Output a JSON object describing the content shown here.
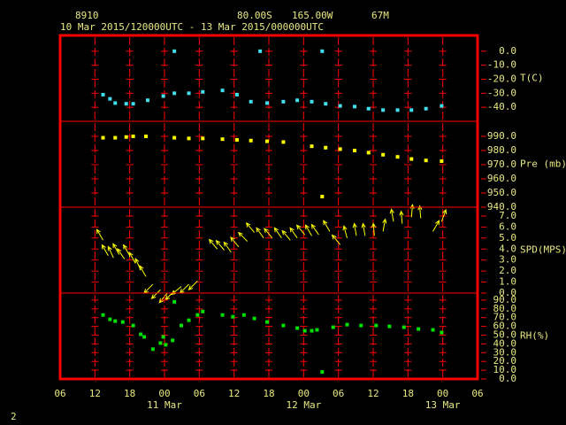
{
  "header": {
    "station": "8910",
    "lat": "80.00S",
    "lon": "165.00W",
    "elev": "67M",
    "period": "10 Mar 2015/120000UTC - 13 Mar 2015/000000UTC",
    "page": "2"
  },
  "x_axis": {
    "xlim": [
      6,
      78
    ],
    "xticks": [
      {
        "value": 6,
        "label": "06"
      },
      {
        "value": 12,
        "label": "12"
      },
      {
        "value": 18,
        "label": "18"
      },
      {
        "value": 24,
        "label": "00"
      },
      {
        "value": 30,
        "label": "06"
      },
      {
        "value": 36,
        "label": "12"
      },
      {
        "value": 42,
        "label": "18"
      },
      {
        "value": 48,
        "label": "00"
      },
      {
        "value": 54,
        "label": "06"
      },
      {
        "value": 60,
        "label": "12"
      },
      {
        "value": 66,
        "label": "18"
      },
      {
        "value": 72,
        "label": "00"
      },
      {
        "value": 78,
        "label": "06"
      }
    ],
    "date_labels": [
      {
        "value": 24,
        "label": "11 Mar"
      },
      {
        "value": 48,
        "label": "12 Mar"
      },
      {
        "value": 72,
        "label": "13 Mar"
      }
    ]
  },
  "chart_data": [
    {
      "type": "scatter",
      "label": "T(C)",
      "color": "#40e0f0",
      "ylim": [
        -50,
        11.25
      ],
      "yticks": [
        {
          "value": 0,
          "label": "0.0"
        },
        {
          "value": -10,
          "label": "-10.0"
        },
        {
          "value": -20,
          "label": "-20.0"
        },
        {
          "value": -30,
          "label": "-30.0"
        },
        {
          "value": -40,
          "label": "-40.0"
        }
      ],
      "x": [
        13.4,
        14.6,
        15.5,
        17.4,
        18.6,
        21.1,
        23.8,
        25.7,
        25.7,
        28.2,
        30.6,
        34,
        36.5,
        38.9,
        40.5,
        41.7,
        44.5,
        46.9,
        49.4,
        51.2,
        51.8,
        54.3,
        56.8,
        59.2,
        61.7,
        64.2,
        66.6,
        69.1,
        71.8
      ],
      "values": [
        -31,
        -34,
        -37,
        -37.5,
        -37.5,
        -35,
        -32,
        -30,
        0,
        -30,
        -29,
        -28,
        -31,
        -36,
        0,
        -37,
        -36,
        -35,
        -36,
        0,
        -37.5,
        -39,
        -39.5,
        -41,
        -42,
        -42,
        -42,
        -41,
        -39
      ]
    },
    {
      "type": "scatter",
      "label": "Pre (mb)",
      "color": "#ffff00",
      "ylim": [
        940,
        1000.6
      ],
      "yticks": [
        {
          "value": 990,
          "label": "990.0"
        },
        {
          "value": 980,
          "label": "980.0"
        },
        {
          "value": 970,
          "label": "970.0"
        },
        {
          "value": 960,
          "label": "960.0"
        },
        {
          "value": 950,
          "label": "950.0"
        },
        {
          "value": 940,
          "label": "940.0"
        }
      ],
      "x": [
        13.4,
        15.5,
        17.4,
        18.6,
        20.8,
        25.7,
        28.2,
        30.6,
        34,
        36.5,
        38.9,
        41.7,
        44.5,
        49.4,
        51.2,
        51.8,
        54.3,
        56.8,
        59.2,
        61.7,
        64.2,
        66.6,
        69.1,
        71.8
      ],
      "values": [
        989,
        989,
        989.5,
        990,
        990,
        989,
        988.5,
        988.5,
        988,
        987.5,
        987,
        986.5,
        986,
        983,
        947.5,
        982,
        981,
        980,
        978.5,
        977,
        975.5,
        974,
        973,
        972.5
      ]
    },
    {
      "type": "vector",
      "label": "SPD(MPS)",
      "color": "#ffff00",
      "ylim": [
        0,
        7.8
      ],
      "yticks": [
        {
          "value": 7,
          "label": "7.0"
        },
        {
          "value": 6,
          "label": "6.0"
        },
        {
          "value": 5,
          "label": "5.0"
        },
        {
          "value": 4,
          "label": "4.0"
        },
        {
          "value": 3,
          "label": "3.0"
        },
        {
          "value": 2,
          "label": "2.0"
        },
        {
          "value": 1,
          "label": "1.0"
        },
        {
          "value": 0,
          "label": "0.0"
        }
      ],
      "x": [
        13.4,
        14.3,
        15.2,
        16.2,
        17.1,
        18,
        19,
        19.9,
        20.8,
        22,
        23.3,
        24.5,
        25.7,
        26.9,
        28.2,
        29.7,
        33.1,
        34.3,
        35.5,
        36.8,
        38.3,
        39.5,
        41.1,
        42.6,
        44.2,
        45.7,
        46.9,
        48.2,
        49.4,
        50.6,
        52.5,
        54.3,
        55.5,
        57.1,
        58.6,
        60.2,
        61.7,
        63.5,
        65,
        66.6,
        68.2,
        70.3,
        71.8
      ],
      "values": [
        4.8,
        3.4,
        3.2,
        3.5,
        3.1,
        3.4,
        2.7,
        2.1,
        1.5,
        0.8,
        0.3,
        0,
        0.2,
        0.6,
        0.8,
        1.1,
        4,
        3.9,
        3.7,
        4.2,
        4.7,
        5.5,
        5,
        5,
        5,
        4.8,
        5,
        5.3,
        5.2,
        5.3,
        5.6,
        4.4,
        5,
        5.2,
        5.2,
        5.2,
        5.6,
        6.5,
        6.3,
        6.9,
        6.8,
        5.6,
        6.5
      ],
      "directions": [
        330,
        330,
        335,
        330,
        325,
        330,
        330,
        335,
        330,
        225,
        225,
        220,
        225,
        230,
        225,
        225,
        320,
        320,
        325,
        320,
        315,
        320,
        325,
        320,
        325,
        320,
        325,
        320,
        330,
        325,
        330,
        320,
        345,
        350,
        350,
        355,
        10,
        350,
        355,
        5,
        355,
        30,
        20
      ]
    },
    {
      "type": "scatter",
      "label": "RH(%)",
      "color": "#00e000",
      "ylim": [
        0,
        98
      ],
      "yticks": [
        {
          "value": 90,
          "label": "90.0"
        },
        {
          "value": 80,
          "label": "80.0"
        },
        {
          "value": 70,
          "label": "70.0"
        },
        {
          "value": 60,
          "label": "60.0"
        },
        {
          "value": 50,
          "label": "50.0"
        },
        {
          "value": 40,
          "label": "40.0"
        },
        {
          "value": 30,
          "label": "30.0"
        },
        {
          "value": 20,
          "label": "20.0"
        },
        {
          "value": 10,
          "label": "10.0"
        },
        {
          "value": 0,
          "label": "0.0"
        }
      ],
      "x": [
        13.4,
        14.6,
        15.5,
        16.8,
        18.6,
        19.9,
        20.5,
        22,
        23.3,
        23.8,
        24.2,
        25.4,
        25.7,
        26.9,
        28.2,
        29.7,
        30.6,
        34,
        35.8,
        37.7,
        39.5,
        41.7,
        44.5,
        46.9,
        48.2,
        49.4,
        50.3,
        51.2,
        53.1,
        55.5,
        57.9,
        60.5,
        62.8,
        65.3,
        67.8,
        70.3,
        71.8
      ],
      "values": [
        73,
        68,
        66,
        65,
        61,
        51,
        48,
        34,
        41,
        48,
        39,
        44,
        88,
        61,
        67,
        73,
        77,
        73,
        71,
        73,
        69,
        65,
        61,
        58,
        55,
        55,
        56,
        8,
        59,
        62,
        61,
        61,
        60,
        59,
        57,
        56,
        53
      ]
    }
  ]
}
